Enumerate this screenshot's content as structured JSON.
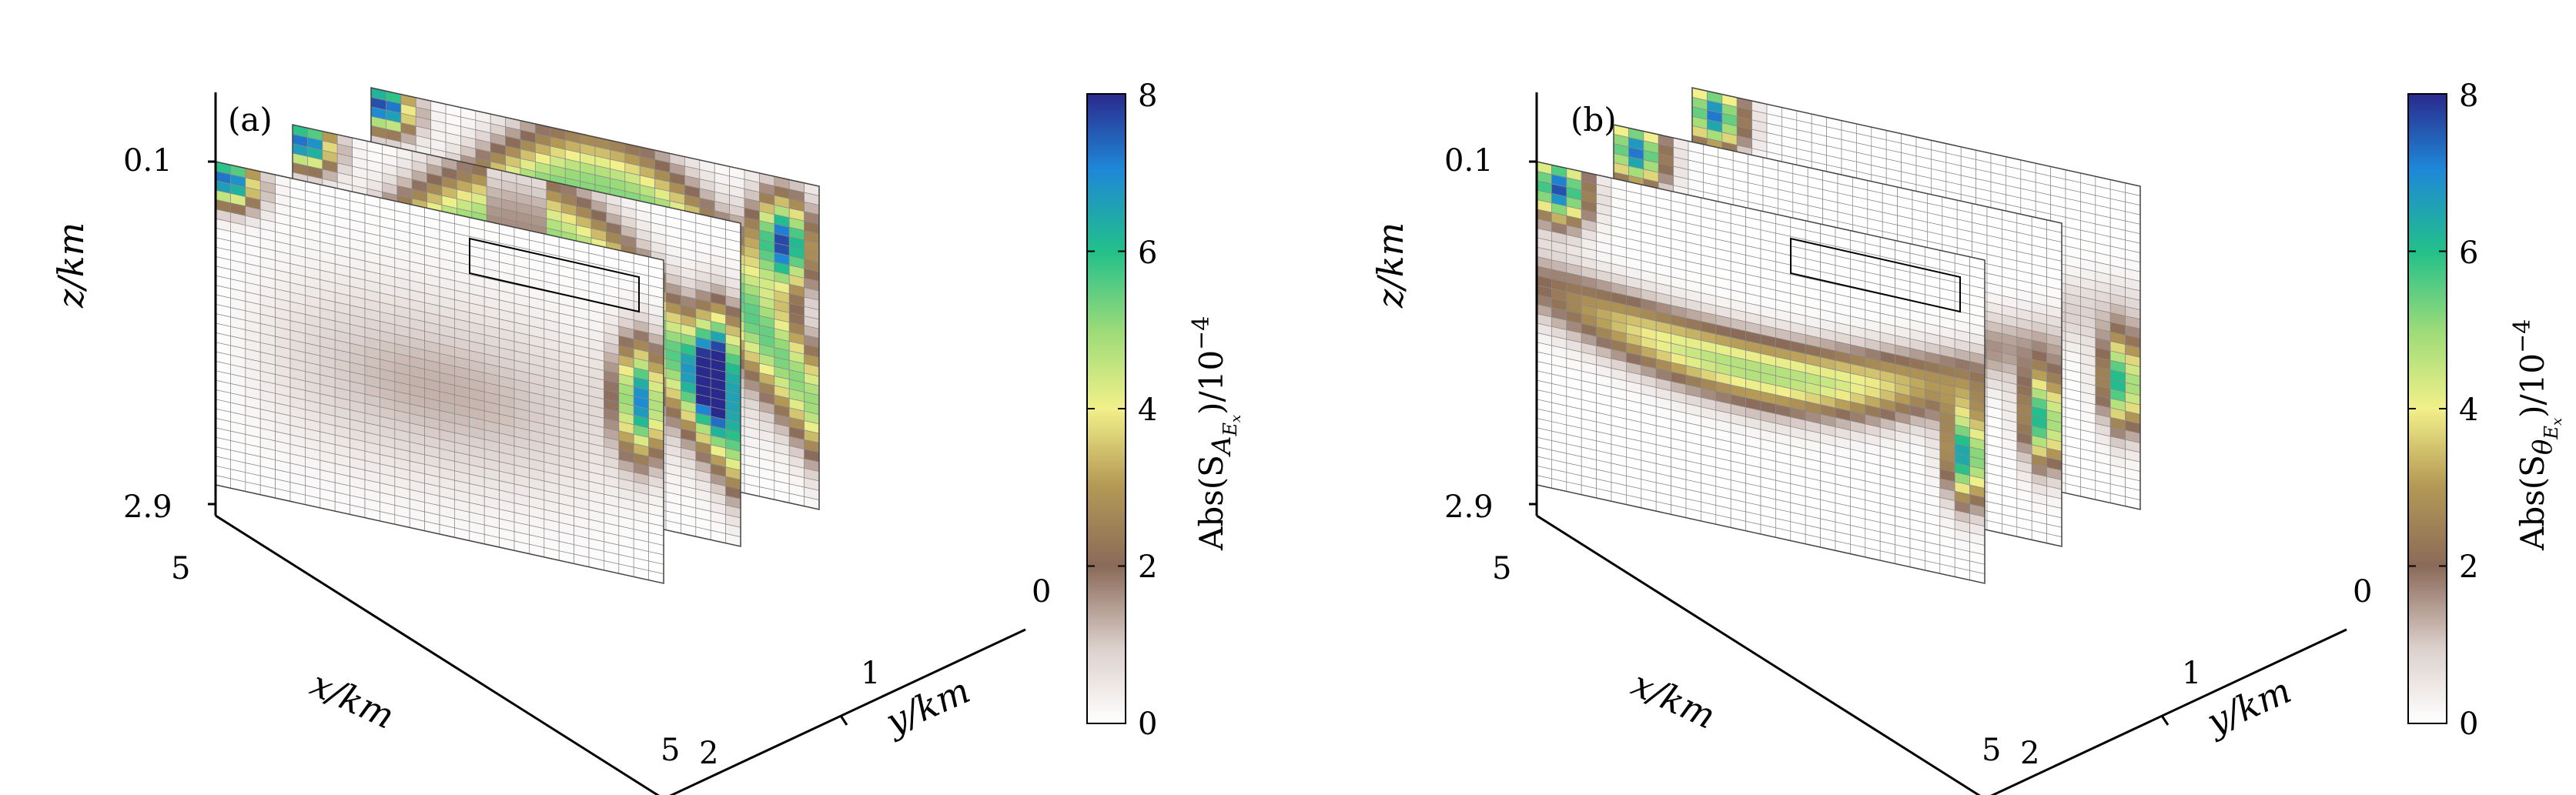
{
  "chart_data": [
    {
      "type": "heatmap",
      "panel_label": "(a)",
      "xlabel": "x/km",
      "ylabel": "y/km",
      "zlabel": "z/km",
      "x_ticks": [
        "5",
        "5"
      ],
      "y_ticks": [
        "2",
        "1",
        "0"
      ],
      "z_ticks": [
        "0.1",
        "2.9"
      ],
      "x_range": [
        -5,
        5
      ],
      "y_range": [
        0,
        2
      ],
      "z_range": [
        0,
        3
      ],
      "slices_y": [
        0,
        1,
        2
      ],
      "colorbar": {
        "label": "Abs(S_{A_{E_x}})/10^{-4}",
        "label_main": "Abs(S",
        "label_sub": "A",
        "label_subsub": "E",
        "label_subsubsub": "x",
        "label_tail": ")/10",
        "label_exp": "−4",
        "ticks": [
          "0",
          "2",
          "4",
          "6",
          "8"
        ],
        "range": [
          0,
          8
        ]
      }
    },
    {
      "type": "heatmap",
      "panel_label": "(b)",
      "xlabel": "x/km",
      "ylabel": "y/km",
      "zlabel": "z/km",
      "x_ticks": [
        "5",
        "5"
      ],
      "y_ticks": [
        "2",
        "1",
        "0"
      ],
      "z_ticks": [
        "0.1",
        "2.9"
      ],
      "x_range": [
        -5,
        5
      ],
      "y_range": [
        0,
        2
      ],
      "z_range": [
        0,
        3
      ],
      "slices_y": [
        0,
        1,
        2
      ],
      "colorbar": {
        "label": "Abs(S_{θ_{E_x}})/10^{-4}",
        "label_main": "Abs(S",
        "label_sub": "θ",
        "label_subsub": "E",
        "label_subsubsub": "x",
        "label_tail": ")/10",
        "label_exp": "−4",
        "ticks": [
          "0",
          "2",
          "4",
          "6",
          "8"
        ],
        "range": [
          0,
          8
        ]
      }
    }
  ]
}
